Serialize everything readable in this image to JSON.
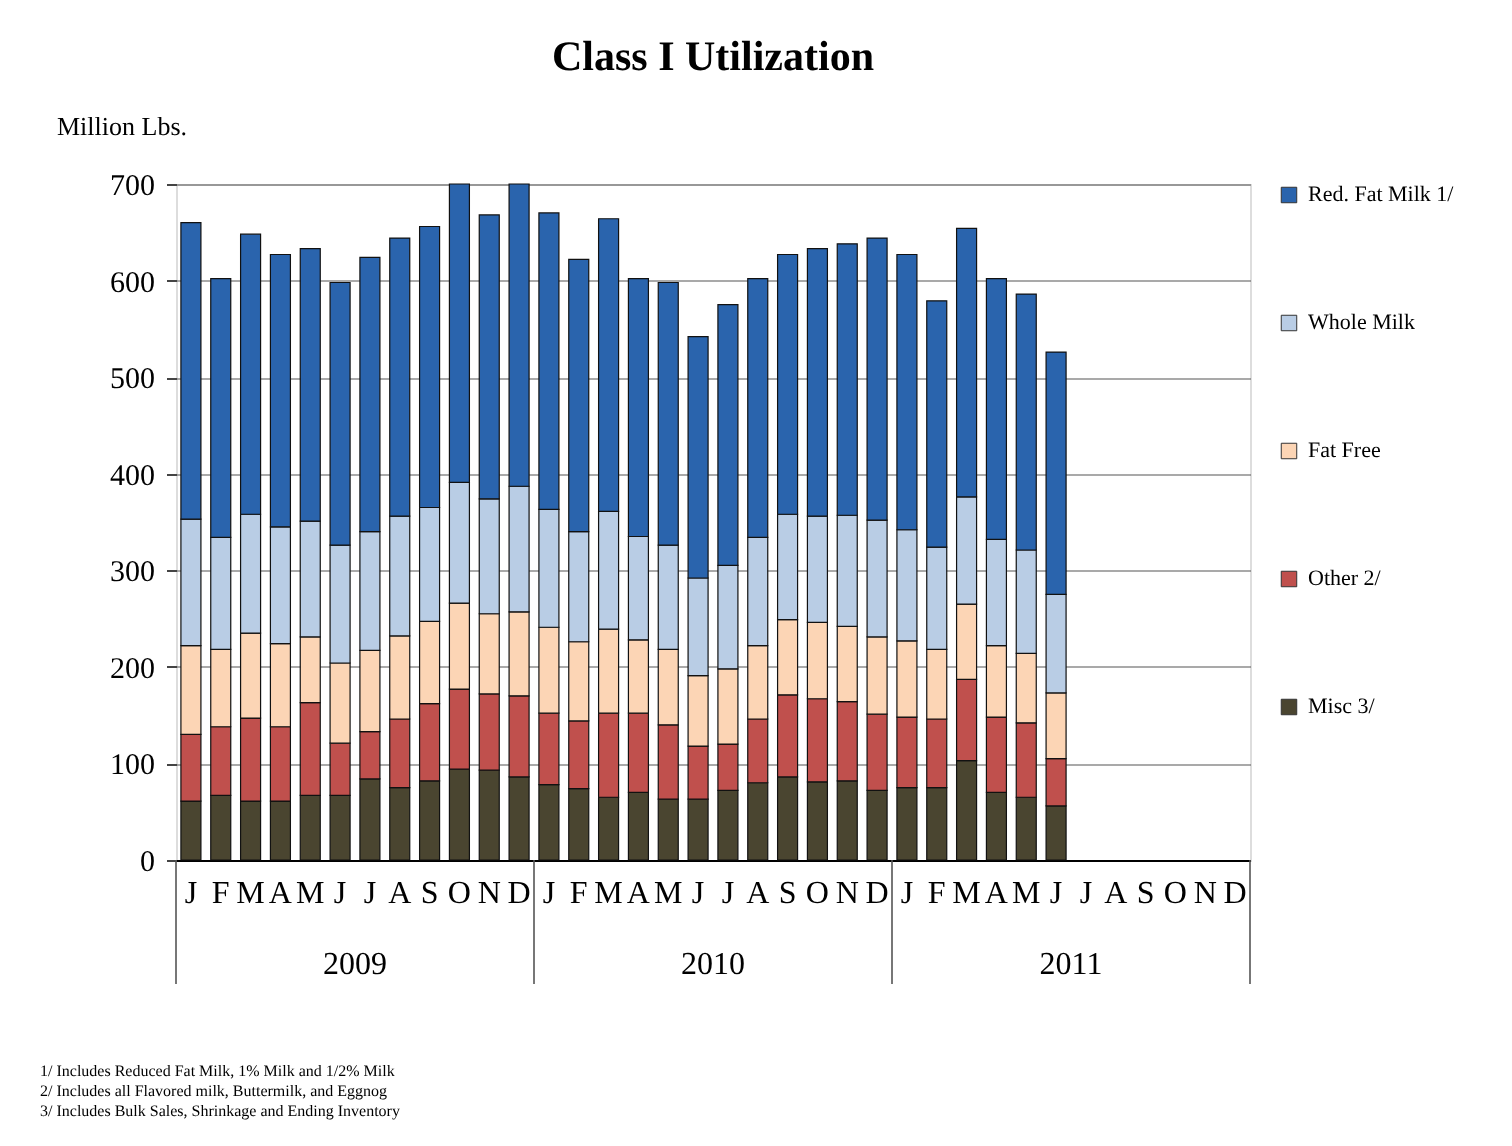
{
  "chart_data": {
    "type": "bar",
    "title": "Class I Utilization",
    "ylabel": "Million Lbs.",
    "stacked": true,
    "grid": "y",
    "legend": "right",
    "categories": [
      "J",
      "F",
      "M",
      "A",
      "M",
      "J",
      "J",
      "A",
      "S",
      "O",
      "N",
      "D",
      "J",
      "F",
      "M",
      "A",
      "M",
      "J",
      "J",
      "A",
      "S",
      "O",
      "N",
      "D",
      "J",
      "F",
      "M",
      "A",
      "M",
      "J",
      "J",
      "A",
      "S",
      "O",
      "N",
      "D"
    ],
    "ylim": [
      0,
      700
    ],
    "yticks": [
      0,
      100,
      200,
      300,
      400,
      500,
      600,
      700
    ],
    "series": [
      {
        "name": "Misc 3/",
        "color": "#4a4530",
        "values": [
          61,
          67,
          61,
          61,
          67,
          67,
          84,
          75,
          82,
          94,
          93,
          86,
          78,
          74,
          65,
          70,
          63,
          63,
          72,
          80,
          86,
          81,
          82,
          72,
          75,
          75,
          103,
          70,
          65,
          56,
          null,
          null,
          null,
          null,
          null,
          null
        ]
      },
      {
        "name": "Other 2/",
        "color": "#c0504d",
        "values": [
          69,
          71,
          86,
          77,
          96,
          54,
          49,
          71,
          80,
          83,
          79,
          84,
          74,
          70,
          87,
          82,
          77,
          55,
          48,
          66,
          85,
          86,
          82,
          79,
          73,
          71,
          84,
          78,
          77,
          49,
          null,
          null,
          null,
          null,
          null,
          null
        ]
      },
      {
        "name": "Fat Free",
        "color": "#fcd5b5",
        "values": [
          92,
          80,
          88,
          86,
          68,
          83,
          84,
          86,
          85,
          89,
          83,
          87,
          89,
          82,
          87,
          76,
          78,
          73,
          78,
          76,
          78,
          79,
          78,
          80,
          79,
          72,
          78,
          74,
          72,
          68,
          null,
          null,
          null,
          null,
          null,
          null
        ]
      },
      {
        "name": "Whole Milk",
        "color": "#b9cde5",
        "values": [
          131,
          116,
          123,
          121,
          120,
          122,
          123,
          124,
          118,
          125,
          119,
          130,
          122,
          114,
          122,
          107,
          108,
          101,
          107,
          112,
          109,
          110,
          115,
          121,
          115,
          106,
          111,
          110,
          107,
          102,
          null,
          null,
          null,
          null,
          null,
          null
        ]
      },
      {
        "name": "Red. Fat Milk 1/",
        "color": "#2a64ad",
        "values": [
          307,
          268,
          290,
          282,
          282,
          272,
          284,
          288,
          291,
          309,
          294,
          313,
          307,
          282,
          303,
          267,
          272,
          250,
          270,
          268,
          269,
          277,
          281,
          292,
          285,
          255,
          278,
          270,
          265,
          251,
          null,
          null,
          null,
          null,
          null,
          null
        ]
      }
    ],
    "annotations": [
      {
        "text": "2009"
      },
      {
        "text": "2010"
      },
      {
        "text": "2011"
      },
      "1/  Includes Reduced Fat Milk, 1% Milk and 1/2% Milk",
      "2/  Includes all Flavored milk, Buttermilk, and Eggnog",
      "3/  Includes  Bulk Sales, Shrinkage and Ending Inventory"
    ]
  }
}
